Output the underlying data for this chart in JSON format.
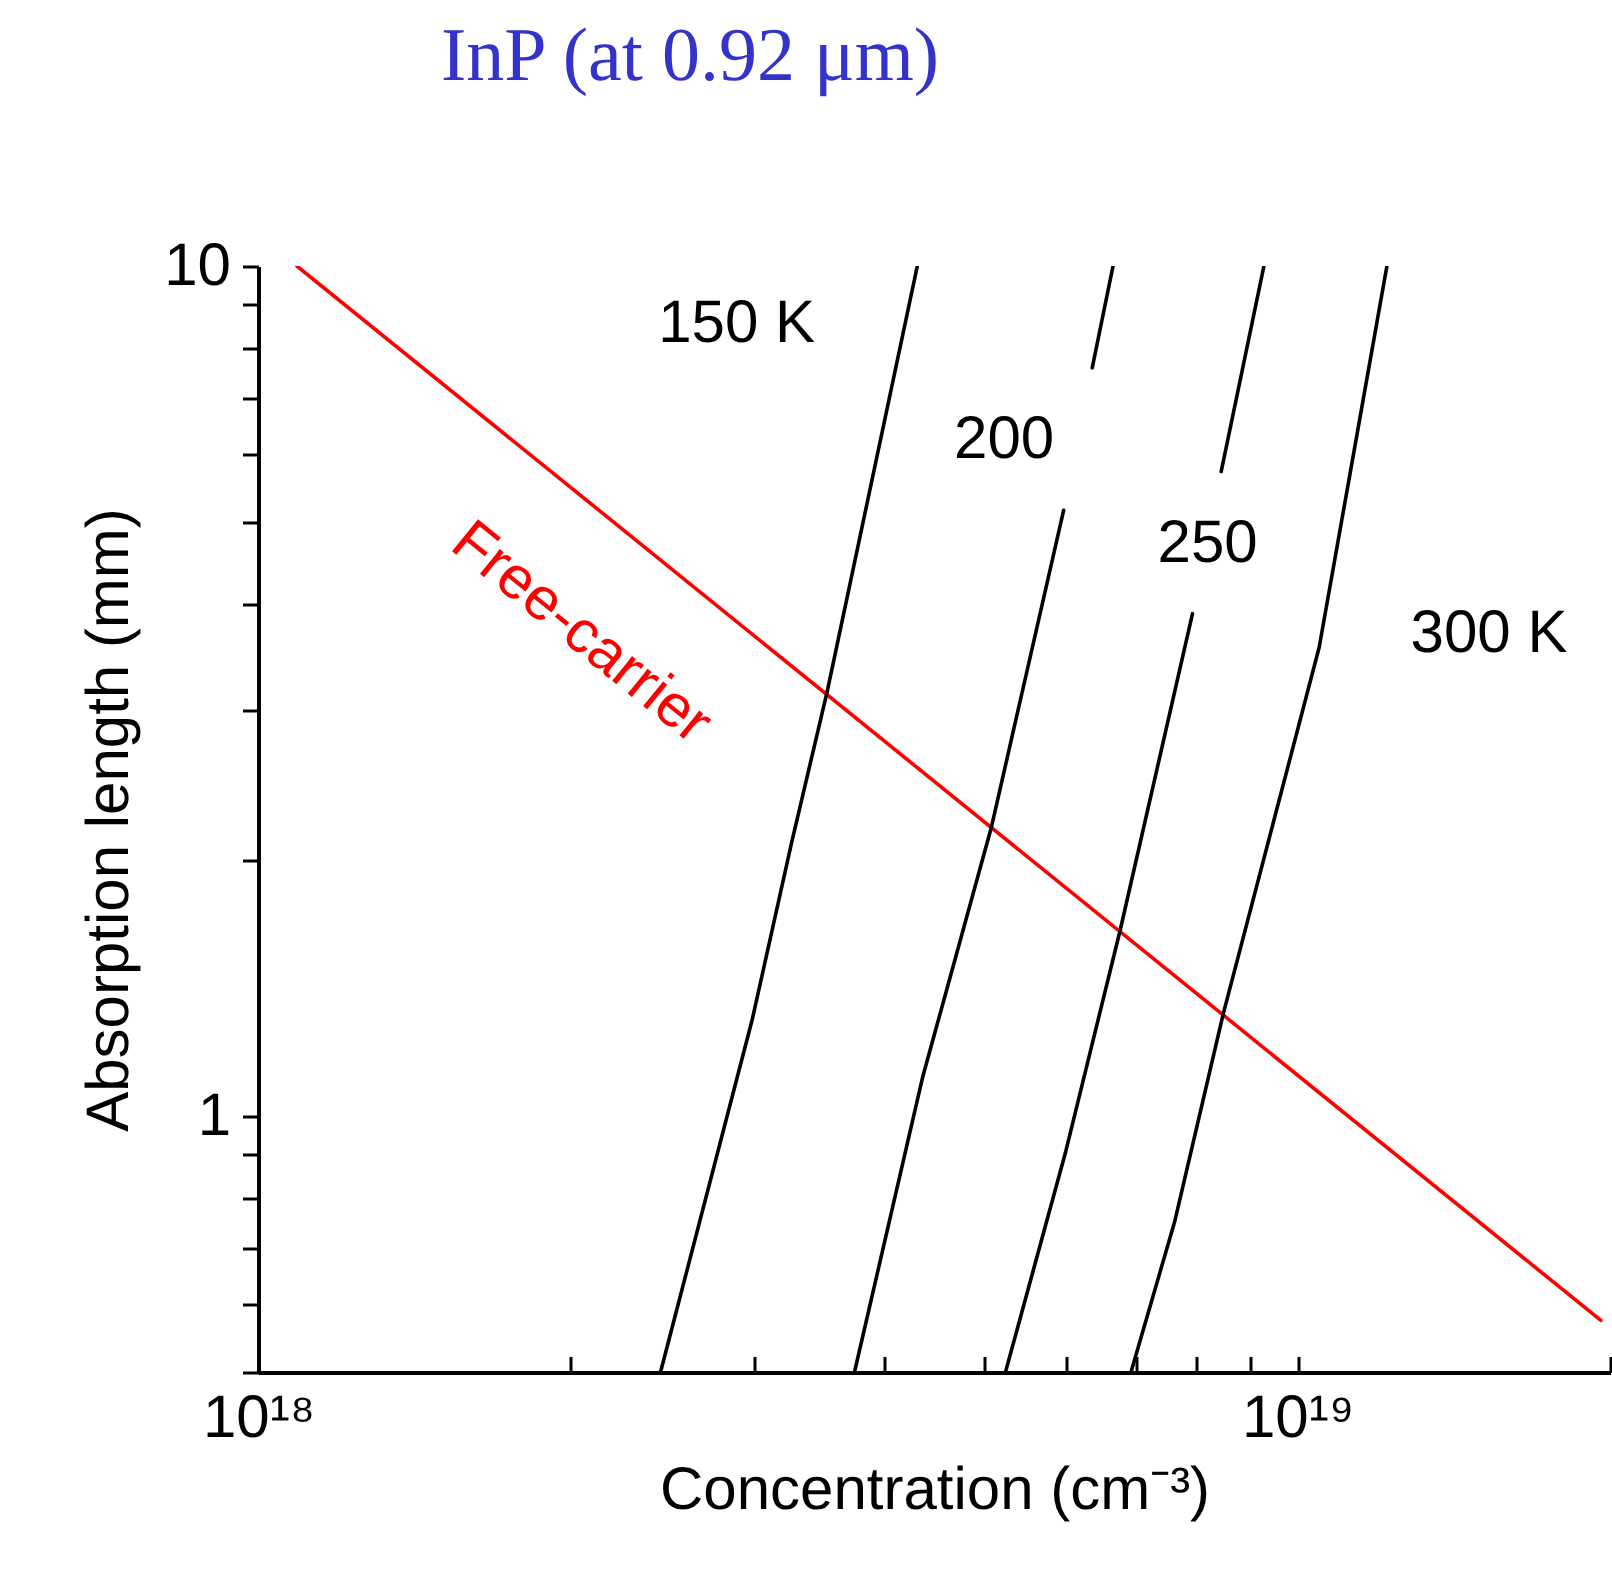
{
  "chart_data": {
    "type": "line",
    "title": "InP (at 0.92 μm)",
    "xlabel": "Concentration (cm⁻³)",
    "ylabel": "Absorption length (mm)",
    "log": "xy",
    "grid": false,
    "legend": false,
    "marker": "none",
    "line_style": "solid",
    "xlim": [
      1e+18,
      2e+19
    ],
    "ylim": [
      0.5,
      10
    ],
    "xticks": [
      {
        "value": 1e+18,
        "label": "10¹⁸"
      },
      {
        "value": 2e+18,
        "label": null
      },
      {
        "value": 3e+18,
        "label": null
      },
      {
        "value": 4e+18,
        "label": null
      },
      {
        "value": 5e+18,
        "label": null
      },
      {
        "value": 6e+18,
        "label": null
      },
      {
        "value": 7e+18,
        "label": null
      },
      {
        "value": 8e+18,
        "label": null
      },
      {
        "value": 9e+18,
        "label": null
      },
      {
        "value": 1e+19,
        "label": "10¹⁹"
      },
      {
        "value": 2e+19,
        "label": null
      }
    ],
    "yticks": [
      {
        "value": 0.5,
        "label": null
      },
      {
        "value": 0.6,
        "label": null
      },
      {
        "value": 0.7,
        "label": null
      },
      {
        "value": 0.8,
        "label": null
      },
      {
        "value": 0.9,
        "label": null
      },
      1,
      {
        "value": 2,
        "label": null
      },
      {
        "value": 3,
        "label": null
      },
      {
        "value": 4,
        "label": null
      },
      {
        "value": 5,
        "label": null
      },
      {
        "value": 6,
        "label": null
      },
      {
        "value": 7,
        "label": null
      },
      {
        "value": 8,
        "label": null
      },
      {
        "value": 9,
        "label": null
      },
      10
    ],
    "series": [
      {
        "name": "Free-carrier",
        "color": "#ff0000",
        "x": [
          1.09e+18,
          1.96e+19
        ],
        "values": [
          10,
          0.575
        ]
      },
      {
        "name": "150 K",
        "color": "#000000",
        "x": [
          2.44e+18,
          2.99e+18,
          3.26e+18,
          3.53e+18,
          4.31e+18
        ],
        "values": [
          0.5,
          1.3,
          2.09,
          3.16,
          10
        ]
      },
      {
        "name": "200",
        "color": "#000000",
        "x": [
          3.75e+18,
          4.36e+18,
          5.08e+18,
          5.96e+18,
          6.1e+18,
          6.35e+18,
          6.65e+18
        ],
        "values": [
          0.5,
          1.11,
          2.19,
          5.16,
          null,
          7.59,
          10
        ]
      },
      {
        "name": "250",
        "color": "#000000",
        "x": [
          5.24e+18,
          5.99e+18,
          6.76e+18,
          7.93e+18,
          8.2e+18,
          8.45e+18,
          9.29e+18
        ],
        "values": [
          0.5,
          0.91,
          1.66,
          3.9,
          null,
          5.73,
          10
        ]
      },
      {
        "name": "300 K",
        "color": "#000000",
        "x": [
          6.92e+18,
          7.62e+18,
          8.49e+18,
          1.05e+19,
          1.22e+19
        ],
        "values": [
          0.5,
          0.75,
          1.32,
          3.56,
          10
        ]
      }
    ]
  }
}
